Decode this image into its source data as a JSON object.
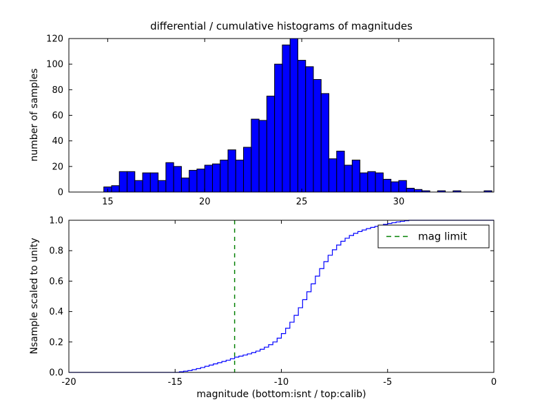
{
  "chart_data": [
    {
      "type": "bar",
      "title": "differential / cumulative histograms of magnitudes",
      "ylabel": "number of samples",
      "xlim": [
        13,
        34.9
      ],
      "ylim": [
        0,
        120
      ],
      "xticks": [
        15,
        20,
        25,
        30
      ],
      "xticklabels": [
        "15",
        "20",
        "25",
        "30"
      ],
      "yticks": [
        0,
        20,
        40,
        60,
        80,
        100,
        120
      ],
      "yticklabels": [
        "0",
        "20",
        "40",
        "60",
        "80",
        "100",
        "120"
      ],
      "grid": false,
      "bar_color": "#0000ff",
      "bar_edge_color": "#000000",
      "bin_start": 14.8,
      "bin_width": 0.4,
      "counts": [
        4,
        5,
        16,
        16,
        9,
        15,
        15,
        9,
        23,
        20,
        11,
        17,
        18,
        21,
        22,
        25,
        33,
        25,
        35,
        57,
        56,
        75,
        100,
        115,
        120,
        103,
        98,
        88,
        77,
        26,
        32,
        21,
        25,
        15,
        16,
        15,
        10,
        8,
        9,
        3,
        2,
        1,
        0,
        1,
        0,
        1,
        0,
        0,
        0,
        1
      ]
    },
    {
      "type": "line",
      "step": true,
      "ylabel": "Nsample scaled to unity",
      "xlabel": "magnitude (bottom:isnt / top:calib)",
      "xlim": [
        -20,
        0
      ],
      "ylim": [
        0,
        1
      ],
      "xticks": [
        -20,
        -15,
        -10,
        -5,
        0
      ],
      "xticklabels": [
        "-20",
        "-15",
        "-10",
        "-5",
        "0"
      ],
      "yticks": [
        0,
        0.2,
        0.4,
        0.6,
        0.8,
        1.0
      ],
      "yticklabels": [
        "0.0",
        "0.2",
        "0.4",
        "0.6",
        "0.8",
        "1.0"
      ],
      "grid": false,
      "line_color": "#0000ff",
      "x": [
        -20,
        -15,
        -14.8,
        -14.6,
        -14.4,
        -14.2,
        -14,
        -13.8,
        -13.6,
        -13.4,
        -13.2,
        -13,
        -12.8,
        -12.6,
        -12.4,
        -12.2,
        -12,
        -11.8,
        -11.6,
        -11.4,
        -11.2,
        -11,
        -10.8,
        -10.6,
        -10.4,
        -10.2,
        -10,
        -9.8,
        -9.6,
        -9.4,
        -9.2,
        -9,
        -8.8,
        -8.6,
        -8.4,
        -8.2,
        -8,
        -7.8,
        -7.6,
        -7.4,
        -7.2,
        -7,
        -6.8,
        -6.6,
        -6.4,
        -6.2,
        -6,
        -5.8,
        -5.6,
        -5.4,
        -5.2,
        -5,
        -4.8,
        -4.6,
        -4.4,
        -4.2,
        -4,
        0
      ],
      "y": [
        0,
        0,
        0.004,
        0.008,
        0.012,
        0.018,
        0.025,
        0.032,
        0.04,
        0.048,
        0.056,
        0.064,
        0.072,
        0.08,
        0.09,
        0.1,
        0.107,
        0.114,
        0.122,
        0.13,
        0.14,
        0.152,
        0.166,
        0.182,
        0.2,
        0.225,
        0.255,
        0.29,
        0.33,
        0.375,
        0.425,
        0.478,
        0.53,
        0.582,
        0.633,
        0.682,
        0.728,
        0.77,
        0.806,
        0.837,
        0.862,
        0.882,
        0.9,
        0.914,
        0.926,
        0.936,
        0.945,
        0.953,
        0.96,
        0.967,
        0.973,
        0.979,
        0.984,
        0.989,
        0.993,
        0.997,
        1.0,
        1.0
      ],
      "mag_limit": {
        "x": -12.2,
        "color": "#008000",
        "dashed": true,
        "label": "mag limit"
      },
      "legend": {
        "label": "mag limit",
        "position": "upper right"
      }
    }
  ]
}
